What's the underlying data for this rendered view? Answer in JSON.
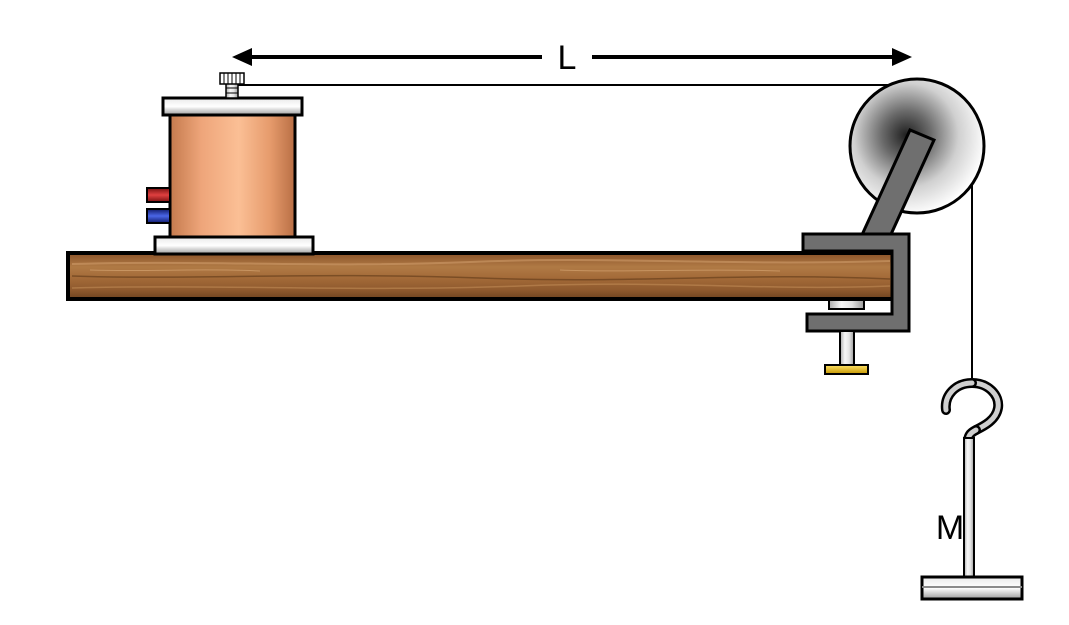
{
  "labels": {
    "length": "L",
    "mass": "M"
  },
  "colors": {
    "wood_base": "#a06a3a",
    "wood_dark": "#6e4320",
    "copper_light": "#f6b88e",
    "copper_mid": "#d98a5c",
    "copper_dark": "#b86e44",
    "steel_light": "#f2f2f2",
    "steel_mid": "#c8c8c8",
    "steel_dark": "#8a8a8a",
    "clamp": "#6f6f6f",
    "terminal_red": "#c0282a",
    "terminal_blue": "#2a40b8",
    "knob_gold": "#e8c000",
    "outline": "#000000"
  }
}
